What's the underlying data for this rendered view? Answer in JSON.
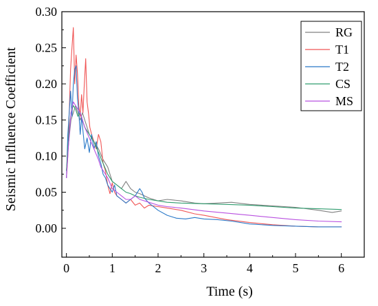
{
  "chart_data": {
    "type": "line",
    "title": "",
    "xlabel": "Time (s)",
    "ylabel": "Seismic Influence Coefficient",
    "xlim": [
      -0.1,
      6.5
    ],
    "ylim": [
      -0.04,
      0.3
    ],
    "xticks": [
      0,
      1,
      2,
      3,
      4,
      5,
      6
    ],
    "xtick_labels": [
      "0",
      "1",
      "2",
      "3",
      "4",
      "5",
      "6"
    ],
    "yticks": [
      0.0,
      0.05,
      0.1,
      0.15,
      0.2,
      0.25,
      0.3
    ],
    "ytick_labels": [
      "0.00",
      "0.05",
      "0.10",
      "0.15",
      "0.20",
      "0.25",
      "0.30"
    ],
    "grid": false,
    "legend_position": "top-right",
    "series": [
      {
        "name": "RG",
        "color": "#808080",
        "x": [
          0.0,
          0.05,
          0.1,
          0.15,
          0.2,
          0.25,
          0.3,
          0.35,
          0.4,
          0.45,
          0.5,
          0.6,
          0.7,
          0.8,
          0.9,
          1.0,
          1.1,
          1.2,
          1.3,
          1.4,
          1.5,
          1.6,
          1.7,
          1.8,
          2.0,
          2.2,
          2.5,
          2.8,
          3.0,
          3.3,
          3.6,
          4.0,
          4.5,
          5.0,
          5.5,
          5.8,
          6.0
        ],
        "y": [
          0.08,
          0.12,
          0.15,
          0.16,
          0.17,
          0.16,
          0.15,
          0.16,
          0.15,
          0.14,
          0.13,
          0.12,
          0.11,
          0.095,
          0.085,
          0.065,
          0.06,
          0.055,
          0.065,
          0.055,
          0.05,
          0.048,
          0.045,
          0.042,
          0.038,
          0.04,
          0.038,
          0.035,
          0.034,
          0.035,
          0.036,
          0.033,
          0.031,
          0.029,
          0.025,
          0.022,
          0.024
        ]
      },
      {
        "name": "T1",
        "color": "#f05454",
        "x": [
          0.0,
          0.03,
          0.06,
          0.09,
          0.12,
          0.15,
          0.18,
          0.21,
          0.24,
          0.27,
          0.3,
          0.33,
          0.36,
          0.39,
          0.42,
          0.45,
          0.48,
          0.51,
          0.55,
          0.6,
          0.65,
          0.7,
          0.75,
          0.8,
          0.85,
          0.9,
          0.95,
          1.0,
          1.05,
          1.1,
          1.2,
          1.3,
          1.4,
          1.5,
          1.6,
          1.7,
          1.8,
          2.0,
          2.2,
          2.5,
          2.8,
          3.0,
          3.5,
          4.0,
          4.5,
          5.0,
          5.5,
          6.0
        ],
        "y": [
          0.07,
          0.1,
          0.16,
          0.22,
          0.25,
          0.278,
          0.2,
          0.24,
          0.215,
          0.17,
          0.155,
          0.185,
          0.16,
          0.2,
          0.235,
          0.175,
          0.16,
          0.14,
          0.13,
          0.12,
          0.11,
          0.13,
          0.12,
          0.09,
          0.08,
          0.06,
          0.048,
          0.063,
          0.05,
          0.045,
          0.04,
          0.035,
          0.04,
          0.032,
          0.035,
          0.028,
          0.032,
          0.03,
          0.028,
          0.025,
          0.02,
          0.018,
          0.012,
          0.008,
          0.005,
          0.003,
          0.002,
          0.002
        ]
      },
      {
        "name": "T2",
        "color": "#2878c8",
        "x": [
          0.0,
          0.03,
          0.06,
          0.09,
          0.12,
          0.15,
          0.18,
          0.21,
          0.24,
          0.27,
          0.3,
          0.33,
          0.36,
          0.4,
          0.45,
          0.5,
          0.55,
          0.6,
          0.65,
          0.7,
          0.75,
          0.8,
          0.85,
          0.9,
          0.95,
          1.0,
          1.05,
          1.1,
          1.2,
          1.3,
          1.4,
          1.5,
          1.6,
          1.65,
          1.7,
          1.8,
          1.9,
          2.0,
          2.2,
          2.4,
          2.6,
          2.8,
          3.0,
          3.3,
          3.6,
          4.0,
          4.5,
          5.0,
          5.5,
          6.0
        ],
        "y": [
          0.07,
          0.13,
          0.16,
          0.19,
          0.155,
          0.2,
          0.22,
          0.225,
          0.18,
          0.16,
          0.13,
          0.155,
          0.135,
          0.11,
          0.125,
          0.105,
          0.13,
          0.11,
          0.12,
          0.1,
          0.09,
          0.075,
          0.07,
          0.06,
          0.055,
          0.05,
          0.06,
          0.045,
          0.04,
          0.035,
          0.04,
          0.045,
          0.055,
          0.05,
          0.042,
          0.035,
          0.03,
          0.025,
          0.018,
          0.014,
          0.013,
          0.015,
          0.013,
          0.012,
          0.01,
          0.006,
          0.004,
          0.003,
          0.002,
          0.002
        ]
      },
      {
        "name": "CS",
        "color": "#2e9c6e",
        "x": [
          0.0,
          0.05,
          0.1,
          0.15,
          0.2,
          0.25,
          0.3,
          0.35,
          0.4,
          0.5,
          0.6,
          0.7,
          0.8,
          0.9,
          1.0,
          1.1,
          1.2,
          1.3,
          1.4,
          1.5,
          1.6,
          1.8,
          2.0,
          2.2,
          2.5,
          3.0,
          3.5,
          4.0,
          4.5,
          5.0,
          5.5,
          6.0
        ],
        "y": [
          0.08,
          0.13,
          0.16,
          0.17,
          0.165,
          0.155,
          0.16,
          0.15,
          0.14,
          0.13,
          0.12,
          0.105,
          0.09,
          0.075,
          0.065,
          0.06,
          0.055,
          0.05,
          0.048,
          0.045,
          0.043,
          0.04,
          0.038,
          0.036,
          0.035,
          0.034,
          0.033,
          0.032,
          0.03,
          0.028,
          0.027,
          0.026
        ]
      },
      {
        "name": "MS",
        "color": "#b84fe0",
        "x": [
          0.0,
          0.05,
          0.1,
          0.15,
          0.2,
          0.25,
          0.3,
          0.35,
          0.4,
          0.5,
          0.6,
          0.7,
          0.75,
          0.8,
          0.9,
          1.0,
          1.1,
          1.2,
          1.3,
          1.4,
          1.5,
          1.6,
          1.8,
          2.0,
          2.2,
          2.5,
          3.0,
          3.5,
          4.0,
          4.5,
          5.0,
          5.5,
          6.0
        ],
        "y": [
          0.07,
          0.12,
          0.16,
          0.175,
          0.17,
          0.165,
          0.16,
          0.15,
          0.14,
          0.125,
          0.11,
          0.095,
          0.085,
          0.08,
          0.07,
          0.055,
          0.05,
          0.045,
          0.04,
          0.04,
          0.045,
          0.04,
          0.036,
          0.032,
          0.03,
          0.028,
          0.024,
          0.021,
          0.018,
          0.015,
          0.012,
          0.01,
          0.009
        ]
      }
    ]
  }
}
